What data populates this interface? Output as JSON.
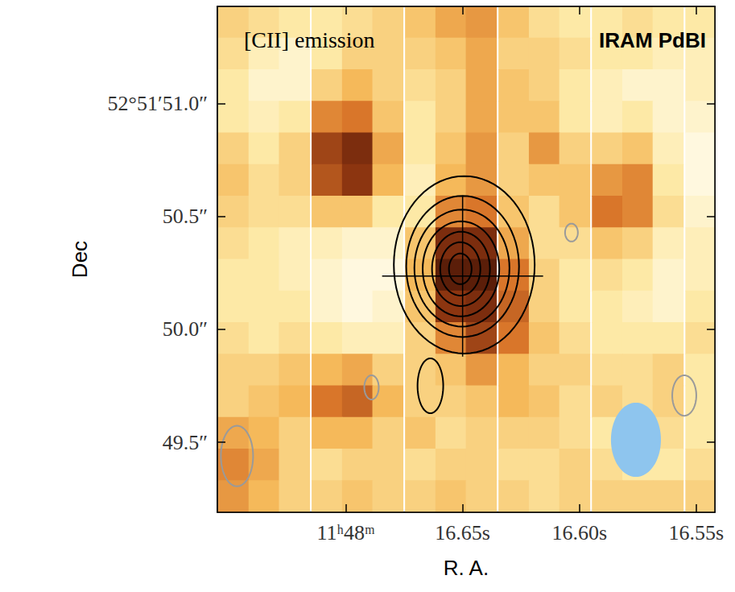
{
  "chart_data": {
    "type": "heatmap",
    "title": "[CII] emission",
    "annotation": "IRAM PdBI",
    "x_label": "R. A.",
    "y_label": "Dec",
    "xlim": [
      16.755,
      16.542
    ],
    "xticks": [
      {
        "value": 16.7,
        "label": "11ʰ48ᵐ"
      },
      {
        "value": 16.65,
        "label": "16.65s"
      },
      {
        "value": 16.6,
        "label": "16.60s"
      },
      {
        "value": 16.55,
        "label": "16.55s"
      }
    ],
    "ylim": [
      49.19,
      51.43
    ],
    "yticks": [
      {
        "value": 49.5,
        "label": "49.5″"
      },
      {
        "value": 50.0,
        "label": "50.0″"
      },
      {
        "value": 50.5,
        "label": "50.5″"
      },
      {
        "value": 51.0,
        "label": "52°51′51.0″"
      }
    ],
    "colors": [
      "#fffdf2",
      "#fde9a6",
      "#f5b95a",
      "#d9762a",
      "#8c3510",
      "#4a1606"
    ],
    "value_range": [
      0,
      1
    ],
    "x": [
      16.748,
      16.735,
      16.722,
      16.708,
      16.695,
      16.682,
      16.668,
      16.655,
      16.642,
      16.628,
      16.615,
      16.602,
      16.588,
      16.575,
      16.562,
      16.548
    ],
    "y": [
      51.36,
      51.22,
      51.08,
      50.94,
      50.8,
      50.66,
      50.52,
      50.38,
      50.24,
      50.1,
      49.96,
      49.82,
      49.68,
      49.54,
      49.4,
      49.26
    ],
    "values": [
      [
        0.3,
        0.25,
        0.2,
        0.2,
        0.25,
        0.3,
        0.35,
        0.45,
        0.5,
        0.35,
        0.25,
        0.2,
        0.2,
        0.25,
        0.2,
        0.2
      ],
      [
        0.25,
        0.15,
        0.1,
        0.2,
        0.3,
        0.3,
        0.3,
        0.35,
        0.45,
        0.3,
        0.3,
        0.25,
        0.2,
        0.2,
        0.15,
        0.15
      ],
      [
        0.2,
        0.1,
        0.1,
        0.3,
        0.4,
        0.3,
        0.25,
        0.3,
        0.45,
        0.35,
        0.3,
        0.2,
        0.15,
        0.1,
        0.1,
        0.15
      ],
      [
        0.2,
        0.15,
        0.2,
        0.55,
        0.6,
        0.35,
        0.2,
        0.3,
        0.45,
        0.35,
        0.35,
        0.2,
        0.15,
        0.2,
        0.1,
        0.1
      ],
      [
        0.3,
        0.2,
        0.3,
        0.75,
        0.85,
        0.45,
        0.2,
        0.35,
        0.5,
        0.3,
        0.5,
        0.3,
        0.3,
        0.35,
        0.15,
        0.05
      ],
      [
        0.35,
        0.25,
        0.3,
        0.7,
        0.8,
        0.4,
        0.15,
        0.4,
        0.5,
        0.3,
        0.35,
        0.35,
        0.5,
        0.55,
        0.2,
        0.05
      ],
      [
        0.3,
        0.25,
        0.25,
        0.35,
        0.35,
        0.2,
        0.2,
        0.55,
        0.6,
        0.35,
        0.25,
        0.35,
        0.6,
        0.55,
        0.25,
        0.1
      ],
      [
        0.25,
        0.2,
        0.15,
        0.15,
        0.1,
        0.1,
        0.35,
        0.85,
        0.85,
        0.45,
        0.25,
        0.25,
        0.35,
        0.3,
        0.15,
        0.15
      ],
      [
        0.2,
        0.2,
        0.15,
        0.1,
        0.05,
        0.05,
        0.4,
        0.95,
        0.95,
        0.6,
        0.3,
        0.2,
        0.25,
        0.2,
        0.1,
        0.15
      ],
      [
        0.2,
        0.2,
        0.2,
        0.1,
        0.05,
        0.1,
        0.35,
        0.8,
        0.85,
        0.65,
        0.3,
        0.2,
        0.2,
        0.15,
        0.1,
        0.2
      ],
      [
        0.25,
        0.2,
        0.25,
        0.2,
        0.15,
        0.15,
        0.3,
        0.55,
        0.75,
        0.6,
        0.35,
        0.25,
        0.2,
        0.2,
        0.2,
        0.25
      ],
      [
        0.3,
        0.3,
        0.35,
        0.4,
        0.45,
        0.3,
        0.3,
        0.35,
        0.5,
        0.4,
        0.3,
        0.3,
        0.25,
        0.25,
        0.3,
        0.2
      ],
      [
        0.3,
        0.35,
        0.4,
        0.6,
        0.65,
        0.4,
        0.3,
        0.3,
        0.35,
        0.4,
        0.35,
        0.25,
        0.3,
        0.25,
        0.3,
        0.2
      ],
      [
        0.45,
        0.4,
        0.3,
        0.4,
        0.4,
        0.3,
        0.35,
        0.25,
        0.3,
        0.3,
        0.3,
        0.25,
        0.2,
        0.2,
        0.25,
        0.2
      ],
      [
        0.55,
        0.45,
        0.3,
        0.25,
        0.3,
        0.3,
        0.25,
        0.3,
        0.3,
        0.25,
        0.25,
        0.3,
        0.25,
        0.2,
        0.2,
        0.25
      ],
      [
        0.5,
        0.4,
        0.3,
        0.3,
        0.35,
        0.3,
        0.3,
        0.35,
        0.3,
        0.3,
        0.25,
        0.3,
        0.3,
        0.3,
        0.3,
        0.3
      ]
    ],
    "contours": [
      {
        "color": "#000000",
        "shapes": [
          {
            "center": [
              16.6493,
              50.2857
            ],
            "width": 0.0603,
            "height": 0.786
          },
          {
            "center": [
              16.65,
              50.2786
            ],
            "width": 0.0483,
            "height": 0.625
          },
          {
            "center": [
              16.6503,
              50.2714
            ],
            "width": 0.0407,
            "height": 0.518
          },
          {
            "center": [
              16.6507,
              50.2679
            ],
            "width": 0.0328,
            "height": 0.421
          },
          {
            "center": [
              16.6507,
              50.2679
            ],
            "width": 0.0248,
            "height": 0.329
          },
          {
            "center": [
              16.651,
              50.2679
            ],
            "width": 0.0172,
            "height": 0.236
          },
          {
            "center": [
              16.651,
              50.2679
            ],
            "width": 0.0097,
            "height": 0.136
          },
          {
            "center": [
              16.6638,
              49.75
            ],
            "width": 0.011,
            "height": 0.243
          }
        ]
      },
      {
        "color": "#9a9a9a",
        "shapes": [
          {
            "center": [
              16.6034,
              50.4286
            ],
            "width": 0.0055,
            "height": 0.079
          },
          {
            "center": [
              16.689,
              49.743
            ],
            "width": 0.0062,
            "height": 0.107
          },
          {
            "center": [
              16.5551,
              49.707
            ],
            "width": 0.0103,
            "height": 0.179
          },
          {
            "center": [
              16.7466,
              49.439
            ],
            "width": 0.0138,
            "height": 0.268
          }
        ]
      }
    ],
    "source_position": [
      16.65,
      50.236
    ],
    "beam": {
      "center": [
        16.5758,
        49.511
      ],
      "width": 0.0214,
      "height": 0.329,
      "color": "#8ec5ee"
    }
  }
}
